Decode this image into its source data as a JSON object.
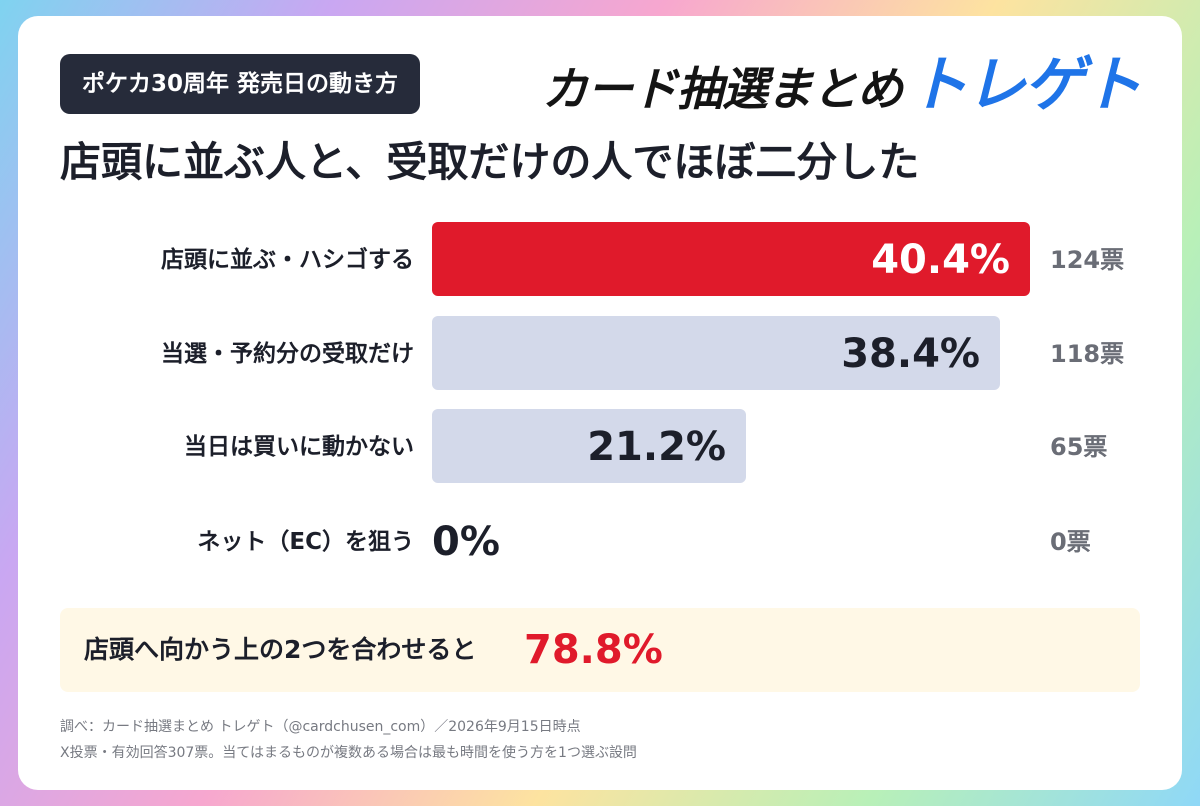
{
  "badge": "ポケカ30周年 発売日の動き方",
  "logo": {
    "main": "カード抽選まとめ",
    "accent": "トレゲト"
  },
  "headline": "店頭に並ぶ人と、受取だけの人でほぼ二分した",
  "chart_data": {
    "type": "bar",
    "orientation": "horizontal",
    "categories": [
      "店頭に並ぶ・ハシゴする",
      "当選・予約分の受取だけ",
      "当日は買いに動かない",
      "ネット（EC）を狙う"
    ],
    "values": [
      40.4,
      38.4,
      21.2,
      0
    ],
    "value_labels": [
      "40.4%",
      "38.4%",
      "21.2%",
      "0%"
    ],
    "votes": [
      "124票",
      "118票",
      "65票",
      "0票"
    ],
    "highlight_index": 0,
    "xlim": [
      0,
      100
    ],
    "colors": {
      "highlight": "#e01a2b",
      "default": "#d3d9ea"
    }
  },
  "summary": {
    "text": "店頭へ向かう上の2つを合わせると",
    "value": "78.8%"
  },
  "footnotes": [
    "調べ：カード抽選まとめ トレゲト（@cardchusen_com）／2026年9月15日時点",
    "X投票・有効回答307票。当てはまるものが複数ある場合は最も時間を使う方を1つ選ぶ設問"
  ]
}
